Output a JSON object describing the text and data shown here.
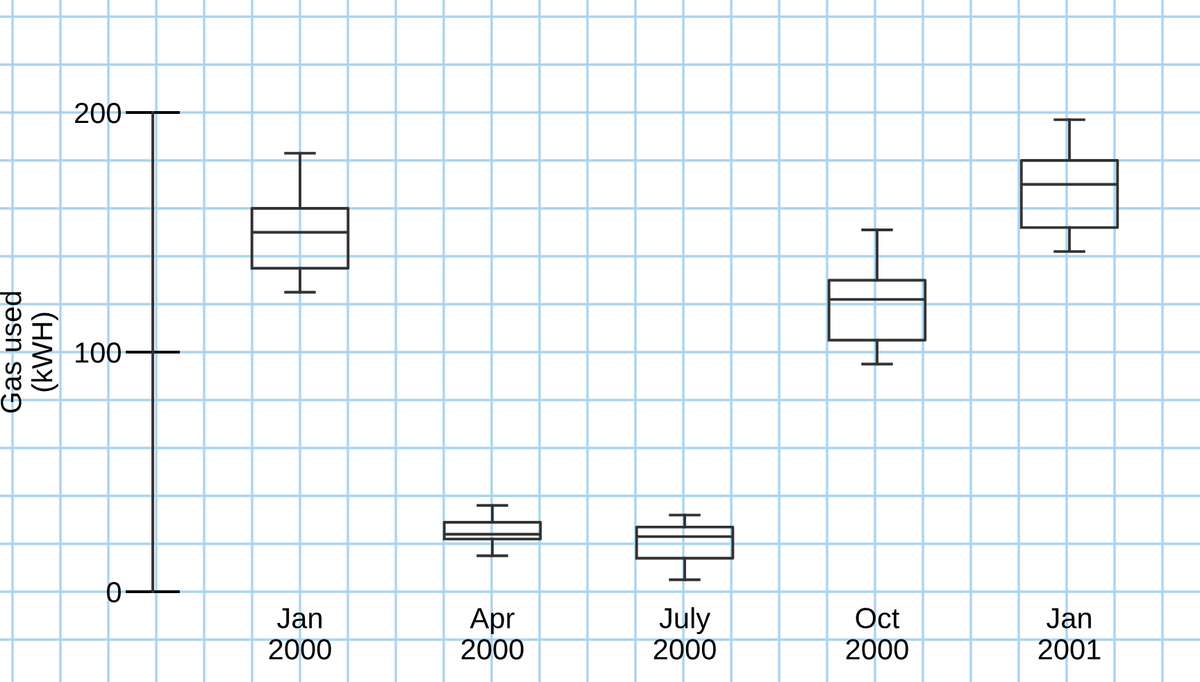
{
  "chart_data": {
    "type": "box",
    "ylabel": "Gas used\n(kWH)",
    "categories": [
      "Jan\n2000",
      "Apr\n2000",
      "July\n2000",
      "Oct\n2000",
      "Jan\n2001"
    ],
    "boxes": [
      {
        "low": 125,
        "q1": 135,
        "median": 150,
        "q3": 160,
        "high": 183
      },
      {
        "low": 15,
        "q1": 22,
        "median": 24,
        "q3": 29,
        "high": 36
      },
      {
        "low": 5,
        "q1": 14,
        "median": 23,
        "q3": 27,
        "high": 32
      },
      {
        "low": 95,
        "q1": 105,
        "median": 122,
        "q3": 130,
        "high": 151
      },
      {
        "low": 142,
        "q1": 152,
        "median": 170,
        "q3": 180,
        "high": 197
      }
    ],
    "ylim": [
      0,
      200
    ],
    "yticks": [
      0,
      100,
      200
    ],
    "grid": true
  }
}
